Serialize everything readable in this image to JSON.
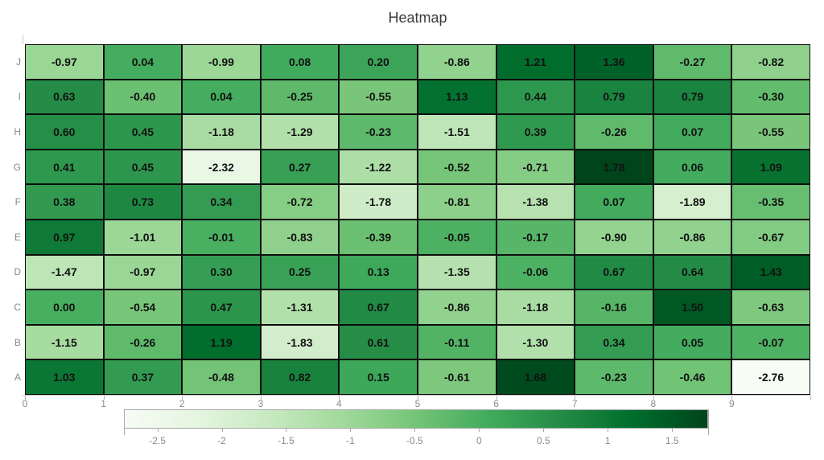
{
  "chart_data": {
    "type": "heatmap",
    "title": "Heatmap",
    "rows": [
      "J",
      "I",
      "H",
      "G",
      "F",
      "E",
      "D",
      "C",
      "B",
      "A"
    ],
    "x_ticks": [
      "0",
      "1",
      "2",
      "3",
      "4",
      "5",
      "6",
      "7",
      "8",
      "9"
    ],
    "matrix": [
      [
        -0.97,
        0.04,
        -0.99,
        0.08,
        0.2,
        -0.86,
        1.21,
        1.36,
        -0.27,
        -0.82
      ],
      [
        0.63,
        -0.4,
        0.04,
        -0.25,
        -0.55,
        1.13,
        0.44,
        0.79,
        0.79,
        -0.3
      ],
      [
        0.6,
        0.45,
        -1.18,
        -1.29,
        -0.23,
        -1.51,
        0.39,
        -0.26,
        0.07,
        -0.55
      ],
      [
        0.41,
        0.45,
        -2.32,
        0.27,
        -1.22,
        -0.52,
        -0.71,
        1.78,
        0.06,
        1.09
      ],
      [
        0.38,
        0.73,
        0.34,
        -0.72,
        -1.78,
        -0.81,
        -1.38,
        0.07,
        -1.89,
        -0.35
      ],
      [
        0.97,
        -1.01,
        -0.01,
        -0.83,
        -0.39,
        -0.05,
        -0.17,
        -0.9,
        -0.86,
        -0.67
      ],
      [
        -1.47,
        -0.97,
        0.3,
        0.25,
        0.13,
        -1.35,
        -0.06,
        0.67,
        0.64,
        1.43
      ],
      [
        0.0,
        -0.54,
        0.47,
        -1.31,
        0.67,
        -0.86,
        -1.18,
        -0.16,
        1.5,
        -0.63
      ],
      [
        -1.15,
        -0.26,
        1.19,
        -1.83,
        0.61,
        -0.11,
        -1.3,
        0.34,
        0.05,
        -0.07
      ],
      [
        1.03,
        0.37,
        -0.48,
        0.82,
        0.15,
        -0.61,
        1.68,
        -0.23,
        -0.46,
        -2.76
      ]
    ],
    "vmin": -2.76,
    "vmax": 1.78,
    "value_format_decimals": 2,
    "colorbar": {
      "ticks": [
        -2.5,
        -2,
        -1.5,
        -1,
        -0.5,
        0,
        0.5,
        1,
        1.5
      ]
    },
    "colormap": {
      "name": "greens",
      "stops": [
        "#f7fcf5",
        "#e5f5e0",
        "#c7e9c0",
        "#a1d99b",
        "#74c476",
        "#41ab5d",
        "#238b45",
        "#006d2c",
        "#00441b"
      ]
    },
    "legend_position": "bottom",
    "grid": false
  },
  "colors": {
    "title_text": "#3b3b3b",
    "cell_text": "#111111",
    "cell_border": "#0d0d0d",
    "axis_line": "#c8c8c8",
    "tick_label": "#8a8a8a",
    "colorbar_border": "#a9a9a9"
  }
}
